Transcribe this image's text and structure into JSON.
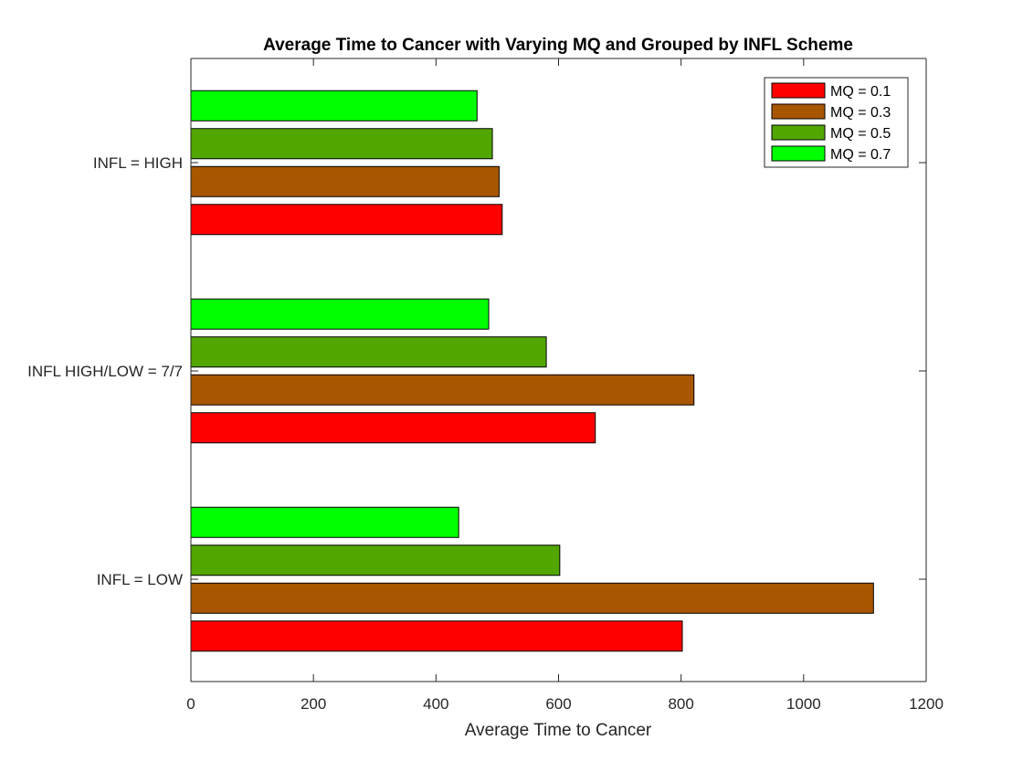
{
  "chart_data": {
    "type": "bar",
    "orientation": "horizontal",
    "title": "Average Time to Cancer with Varying MQ and Grouped by INFL Scheme",
    "xlabel": "Average Time to Cancer",
    "ylabel": "",
    "xlim": [
      0,
      1200
    ],
    "xticks": [
      0,
      200,
      400,
      600,
      800,
      1000,
      1200
    ],
    "xtick_labels": [
      "0",
      "200",
      "400",
      "600",
      "800",
      "1000",
      "1200"
    ],
    "grid": false,
    "legend_position": "top-right",
    "categories": [
      "INFL = LOW",
      "INFL HIGH/LOW = 7/7",
      "INFL = HIGH"
    ],
    "series": [
      {
        "name": "MQ = 0.1",
        "color": "#ff0000",
        "values": [
          802,
          660,
          508
        ]
      },
      {
        "name": "MQ = 0.3",
        "color": "#a85600",
        "values": [
          1114,
          821,
          503
        ]
      },
      {
        "name": "MQ = 0.5",
        "color": "#52a600",
        "values": [
          602,
          580,
          492
        ]
      },
      {
        "name": "MQ = 0.7",
        "color": "#00ff00",
        "values": [
          437,
          486,
          467
        ]
      }
    ]
  }
}
